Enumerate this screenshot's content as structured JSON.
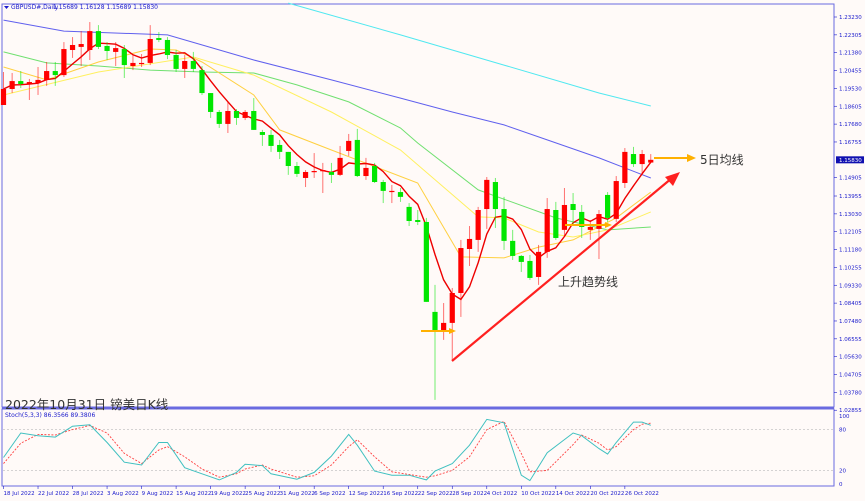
{
  "header": {
    "symbol": "GBPUSD#,Daily",
    "ohlc": "1.15689 1.16128 1.15689 1.15830"
  },
  "caption": "2022年10月31日 镑美日K线",
  "annotations": {
    "ma5_label": "5日均线",
    "trend_label": "上升趋势线"
  },
  "colors": {
    "bull": "#ff0000",
    "bear": "#00e600",
    "ma5": "#ee0000",
    "ma_fast": "#ffd040",
    "ma_slow": "#fff060",
    "ma_green": "#70e070",
    "ma_blue": "#6060ee",
    "ma_cyan": "#50e8f0",
    "stoch_main": "#40c0c0",
    "stoch_signal": "#ff4040",
    "arrow": "#ffb000",
    "axis": "#1a1acc"
  },
  "price_axis": {
    "labels": [
      "1.23230",
      "1.22305",
      "1.21380",
      "1.20455",
      "1.19530",
      "1.18605",
      "1.17680",
      "1.16755",
      "1.14905",
      "1.13955",
      "1.13030",
      "1.12105",
      "1.11180",
      "1.10255",
      "1.09330",
      "1.08405",
      "1.07480",
      "1.06555",
      "1.05630",
      "1.04705",
      "1.03780",
      "1.02855"
    ],
    "current": "1.15830"
  },
  "stoch": {
    "title": "Stoch(5,3,3) 86.3566 89.3806",
    "levels": [
      "100",
      "80",
      "20",
      "0"
    ]
  },
  "date_axis": [
    "18 Jul 2022",
    "22 Jul 2022",
    "28 Jul 2022",
    "3 Aug 2022",
    "9 Aug 2022",
    "15 Aug 2022",
    "19 Aug 2022",
    "25 Aug 2022",
    "31 Aug 2022",
    "6 Sep 2022",
    "12 Sep 2022",
    "16 Sep 2022",
    "22 Sep 2022",
    "28 Sep 2022",
    "4 Oct 2022",
    "10 Oct 2022",
    "14 Oct 2022",
    "20 Oct 2022",
    "26 Oct 2022"
  ],
  "chart_data": {
    "type": "candlestick",
    "candles": [
      [
        "18 Jul",
        1.1867,
        1.2038,
        1.1867,
        1.195
      ],
      [
        "19 Jul",
        1.195,
        1.2033,
        1.1929,
        1.1991
      ],
      [
        "20 Jul",
        1.1991,
        1.2043,
        1.1955,
        1.1976
      ],
      [
        "21 Jul",
        1.1976,
        1.2002,
        1.1893,
        1.1986
      ],
      [
        "22 Jul",
        1.1981,
        1.2064,
        1.1919,
        1.1997
      ],
      [
        "25 Jul",
        1.1997,
        1.209,
        1.1966,
        1.2043
      ],
      [
        "26 Jul",
        1.2043,
        1.209,
        1.1966,
        1.2022
      ],
      [
        "27 Jul",
        1.2022,
        1.2193,
        1.2012,
        1.2157
      ],
      [
        "28 Jul",
        1.2152,
        1.2219,
        1.2111,
        1.2178
      ],
      [
        "29 Jul",
        1.2168,
        1.225,
        1.2069,
        1.2183
      ],
      [
        "1 Aug",
        1.2152,
        1.2297,
        1.21,
        1.225
      ],
      [
        "2 Aug",
        1.225,
        1.2281,
        1.2157,
        1.2168
      ],
      [
        "3 Aug",
        1.2173,
        1.2193,
        1.21,
        1.2147
      ],
      [
        "4 Aug",
        1.2142,
        1.2193,
        1.2069,
        1.2162
      ],
      [
        "5 Aug",
        1.2157,
        1.2178,
        1.2007,
        1.2074
      ],
      [
        "8 Aug",
        1.2069,
        1.2126,
        1.2048,
        1.2085
      ],
      [
        "9 Aug",
        1.208,
        1.2131,
        1.2064,
        1.2085
      ],
      [
        "10 Aug",
        1.2085,
        1.2281,
        1.2074,
        1.2209
      ],
      [
        "11 Aug",
        1.2214,
        1.2245,
        1.2193,
        1.2204
      ],
      [
        "12 Aug",
        1.2204,
        1.2219,
        1.2105,
        1.2126
      ],
      [
        "15 Aug",
        1.2126,
        1.2152,
        1.2038,
        1.2054
      ],
      [
        "16 Aug",
        1.2054,
        1.2126,
        1.2007,
        1.2095
      ],
      [
        "17 Aug",
        1.2095,
        1.2142,
        1.2038,
        1.2054
      ],
      [
        "18 Aug",
        1.2048,
        1.2069,
        1.1919,
        1.1929
      ],
      [
        "19 Aug",
        1.1929,
        1.1929,
        1.18,
        1.1831
      ],
      [
        "22 Aug",
        1.1831,
        1.1841,
        1.1748,
        1.1769
      ],
      [
        "23 Aug",
        1.1769,
        1.1883,
        1.1722,
        1.1836
      ],
      [
        "24 Aug",
        1.1836,
        1.1846,
        1.1764,
        1.18
      ],
      [
        "25 Aug",
        1.18,
        1.1841,
        1.1789,
        1.1831
      ],
      [
        "26 Aug",
        1.1836,
        1.1903,
        1.1738,
        1.1738
      ],
      [
        "29 Aug",
        1.1727,
        1.1738,
        1.1655,
        1.1712
      ],
      [
        "30 Aug",
        1.1712,
        1.1738,
        1.1624,
        1.1655
      ],
      [
        "31 Aug",
        1.166,
        1.1686,
        1.1587,
        1.1624
      ],
      [
        "1 Sep",
        1.1624,
        1.1624,
        1.1505,
        1.1551
      ],
      [
        "2 Sep",
        1.1551,
        1.1572,
        1.1494,
        1.151
      ],
      [
        "5 Sep",
        1.1489,
        1.153,
        1.1442,
        1.152
      ],
      [
        "6 Sep",
        1.152,
        1.1618,
        1.1489,
        1.1525
      ],
      [
        "7 Sep",
        1.1525,
        1.1567,
        1.1411,
        1.153
      ],
      [
        "8 Sep",
        1.152,
        1.1567,
        1.1463,
        1.1505
      ],
      [
        "9 Sep",
        1.1505,
        1.1655,
        1.1499,
        1.1593
      ],
      [
        "12 Sep",
        1.1629,
        1.1717,
        1.1603,
        1.1681
      ],
      [
        "13 Sep",
        1.1686,
        1.1743,
        1.1494,
        1.1499
      ],
      [
        "14 Sep",
        1.1499,
        1.1593,
        1.1479,
        1.1541
      ],
      [
        "15 Sep",
        1.1551,
        1.1567,
        1.1463,
        1.1468
      ],
      [
        "16 Sep",
        1.1468,
        1.1479,
        1.1359,
        1.1422
      ],
      [
        "19 Sep",
        1.1416,
        1.1453,
        1.1359,
        1.1422
      ],
      [
        "20 Sep",
        1.1416,
        1.1437,
        1.1365,
        1.1391
      ],
      [
        "21 Sep",
        1.1339,
        1.1359,
        1.124,
        1.1266
      ],
      [
        "22 Sep",
        1.1271,
        1.1323,
        1.1245,
        1.1261
      ],
      [
        "23 Sep",
        1.1261,
        1.1282,
        1.0847,
        1.0847
      ],
      [
        "26 Sep",
        1.0795,
        1.0935,
        1.0339,
        1.0696
      ],
      [
        "27 Sep",
        1.0696,
        1.0841,
        1.065,
        1.0738
      ],
      [
        "28 Sep",
        1.0738,
        1.0919,
        1.0546,
        1.0893
      ],
      [
        "29 Sep",
        1.0893,
        1.1168,
        1.0769,
        1.1126
      ],
      [
        "30 Sep",
        1.1121,
        1.124,
        1.1033,
        1.1173
      ],
      [
        "3 Oct",
        1.1168,
        1.1339,
        1.1106,
        1.1323
      ],
      [
        "4 Oct",
        1.1328,
        1.1494,
        1.1225,
        1.1479
      ],
      [
        "5 Oct",
        1.1468,
        1.1489,
        1.123,
        1.1328
      ],
      [
        "6 Oct",
        1.1328,
        1.1391,
        1.1116,
        1.1163
      ],
      [
        "7 Oct",
        1.1163,
        1.122,
        1.1064,
        1.1085
      ],
      [
        "10 Oct",
        1.1085,
        1.109,
        1.1002,
        1.1054
      ],
      [
        "11 Oct",
        1.1059,
        1.109,
        1.0961,
        1.0971
      ],
      [
        "12 Oct",
        1.0976,
        1.1142,
        1.0935,
        1.1106
      ],
      [
        "13 Oct",
        1.1106,
        1.1385,
        1.1075,
        1.1328
      ],
      [
        "14 Oct",
        1.1323,
        1.1365,
        1.1168,
        1.1178
      ],
      [
        "17 Oct",
        1.122,
        1.1437,
        1.1189,
        1.1349
      ],
      [
        "18 Oct",
        1.1354,
        1.1411,
        1.1245,
        1.1323
      ],
      [
        "19 Oct",
        1.1313,
        1.1349,
        1.1178,
        1.1235
      ],
      [
        "20 Oct",
        1.122,
        1.1271,
        1.1168,
        1.1235
      ],
      [
        "21 Oct",
        1.1225,
        1.1323,
        1.1069,
        1.1302
      ],
      [
        "24 Oct",
        1.1401,
        1.1416,
        1.1261,
        1.1282
      ],
      [
        "25 Oct",
        1.1277,
        1.1499,
        1.1261,
        1.1473
      ],
      [
        "26 Oct",
        1.1463,
        1.1644,
        1.1437,
        1.1624
      ],
      [
        "27 Oct",
        1.1613,
        1.165,
        1.1546,
        1.1561
      ],
      [
        "28 Oct",
        1.1561,
        1.1634,
        1.1505,
        1.1613
      ],
      [
        "31 Oct",
        1.15689,
        1.16128,
        1.15689,
        1.1583
      ]
    ],
    "moving_averages": {
      "ma_blue": [
        [
          "18 Jul",
          1.2307
        ],
        [
          "27 Jul",
          1.225
        ],
        [
          "12 Aug",
          1.223
        ],
        [
          "26 Aug",
          1.21
        ],
        [
          "8 Sep",
          1.1997
        ],
        [
          "20 Sep",
          1.1903
        ],
        [
          "28 Sep",
          1.1831
        ],
        [
          "6 Oct",
          1.1764
        ],
        [
          "13 Oct",
          1.1686
        ],
        [
          "21 Oct",
          1.1593
        ],
        [
          "31 Oct",
          1.1489
        ]
      ],
      "ma_cyan": [
        [
          "1 Sep",
          1.2395
        ],
        [
          "20 Sep",
          1.223
        ],
        [
          "6 Oct",
          1.2074
        ],
        [
          "21 Oct",
          1.1929
        ],
        [
          "31 Oct",
          1.1862
        ]
      ],
      "ma_green": [
        [
          "18 Jul",
          1.2142
        ],
        [
          "25 Jul",
          1.2085
        ],
        [
          "2 Aug",
          1.2069
        ],
        [
          "10 Aug",
          1.2048
        ],
        [
          "18 Aug",
          1.2038
        ],
        [
          "26 Aug",
          1.2033
        ],
        [
          "2 Sep",
          1.1971
        ],
        [
          "12 Sep",
          1.1883
        ],
        [
          "20 Sep",
          1.1748
        ],
        [
          "22 Sep",
          1.167
        ],
        [
          "3 Oct",
          1.1427
        ],
        [
          "14 Oct",
          1.1282
        ],
        [
          "24 Oct",
          1.122
        ],
        [
          "31 Oct",
          1.1235
        ]
      ],
      "ma_fast": [
        [
          "18 Jul",
          1.2064
        ],
        [
          "25 Jul",
          1.1997
        ],
        [
          "2 Aug",
          1.209
        ],
        [
          "10 Aug",
          1.2157
        ],
        [
          "15 Aug",
          1.2152
        ],
        [
          "18 Aug",
          1.209
        ],
        [
          "26 Aug",
          1.1919
        ],
        [
          "31 Aug",
          1.1738
        ],
        [
          "8 Sep",
          1.1634
        ],
        [
          "22 Sep",
          1.1463
        ],
        [
          "29 Sep",
          1.108
        ],
        [
          "6 Oct",
          1.1075
        ],
        [
          "12 Oct",
          1.1131
        ],
        [
          "18 Oct",
          1.1168
        ],
        [
          "25 Oct",
          1.1282
        ],
        [
          "31 Oct",
          1.1416
        ]
      ],
      "ma_slow": [
        [
          "18 Jul",
          1.1919
        ],
        [
          "2 Aug",
          1.2038
        ],
        [
          "17 Aug",
          1.2116
        ],
        [
          "26 Aug",
          1.2022
        ],
        [
          "8 Sep",
          1.1831
        ],
        [
          "20 Sep",
          1.1634
        ],
        [
          "3 Oct",
          1.1287
        ],
        [
          "6 Oct",
          1.1282
        ],
        [
          "12 Oct",
          1.1209
        ],
        [
          "18 Oct",
          1.1183
        ],
        [
          "24 Oct",
          1.122
        ],
        [
          "31 Oct",
          1.1313
        ]
      ]
    },
    "stoch_main": [
      [
        "18 Jul",
        39
      ],
      [
        "20 Jul",
        75
      ],
      [
        "22 Jul",
        71
      ],
      [
        "26 Jul",
        69
      ],
      [
        "28 Jul",
        85
      ],
      [
        "1 Aug",
        87
      ],
      [
        "3 Aug",
        61
      ],
      [
        "5 Aug",
        32
      ],
      [
        "9 Aug",
        28
      ],
      [
        "11 Aug",
        61
      ],
      [
        "12 Aug",
        61
      ],
      [
        "16 Aug",
        24
      ],
      [
        "18 Aug",
        15
      ],
      [
        "22 Aug",
        6
      ],
      [
        "24 Aug",
        17
      ],
      [
        "25 Aug",
        29
      ],
      [
        "29 Aug",
        27
      ],
      [
        "30 Aug",
        15
      ],
      [
        "2 Sep",
        7
      ],
      [
        "6 Sep",
        17
      ],
      [
        "8 Sep",
        41
      ],
      [
        "12 Sep",
        73
      ],
      [
        "13 Sep",
        57
      ],
      [
        "15 Sep",
        19
      ],
      [
        "19 Sep",
        13
      ],
      [
        "21 Sep",
        13
      ],
      [
        "23 Sep",
        6
      ],
      [
        "26 Sep",
        19
      ],
      [
        "28 Sep",
        30
      ],
      [
        "30 Sep",
        57
      ],
      [
        "4 Oct",
        95
      ],
      [
        "6 Oct",
        90
      ],
      [
        "10 Oct",
        13
      ],
      [
        "11 Oct",
        5
      ],
      [
        "13 Oct",
        46
      ],
      [
        "18 Oct",
        75
      ],
      [
        "19 Oct",
        71
      ],
      [
        "21 Oct",
        52
      ],
      [
        "24 Oct",
        44
      ],
      [
        "25 Oct",
        61
      ],
      [
        "27 Oct",
        91
      ],
      [
        "28 Oct",
        91
      ],
      [
        "31 Oct",
        86.3566
      ]
    ],
    "stoch_signal": [
      [
        "18 Jul",
        30
      ],
      [
        "20 Jul",
        60
      ],
      [
        "22 Jul",
        73
      ],
      [
        "26 Jul",
        72
      ],
      [
        "28 Jul",
        80
      ],
      [
        "1 Aug",
        86
      ],
      [
        "3 Aug",
        75
      ],
      [
        "5 Aug",
        45
      ],
      [
        "9 Aug",
        30
      ],
      [
        "11 Aug",
        50
      ],
      [
        "12 Aug",
        55
      ],
      [
        "16 Aug",
        40
      ],
      [
        "18 Aug",
        22
      ],
      [
        "22 Aug",
        10
      ],
      [
        "24 Aug",
        15
      ],
      [
        "25 Aug",
        22
      ],
      [
        "29 Aug",
        28
      ],
      [
        "30 Aug",
        22
      ],
      [
        "2 Sep",
        10
      ],
      [
        "6 Sep",
        12
      ],
      [
        "8 Sep",
        28
      ],
      [
        "12 Sep",
        55
      ],
      [
        "13 Sep",
        65
      ],
      [
        "15 Sep",
        40
      ],
      [
        "19 Sep",
        18
      ],
      [
        "21 Sep",
        14
      ],
      [
        "23 Sep",
        10
      ],
      [
        "26 Sep",
        12
      ],
      [
        "28 Sep",
        20
      ],
      [
        "30 Sep",
        40
      ],
      [
        "4 Oct",
        80
      ],
      [
        "6 Oct",
        92
      ],
      [
        "10 Oct",
        45
      ],
      [
        "11 Oct",
        18
      ],
      [
        "13 Oct",
        20
      ],
      [
        "18 Oct",
        58
      ],
      [
        "19 Oct",
        72
      ],
      [
        "21 Oct",
        60
      ],
      [
        "24 Oct",
        50
      ],
      [
        "25 Oct",
        55
      ],
      [
        "27 Oct",
        80
      ],
      [
        "28 Oct",
        88
      ],
      [
        "31 Oct",
        89.3806
      ]
    ],
    "price_range": [
      1.02855,
      1.2323
    ],
    "stoch_levels": [
      20,
      80
    ]
  }
}
